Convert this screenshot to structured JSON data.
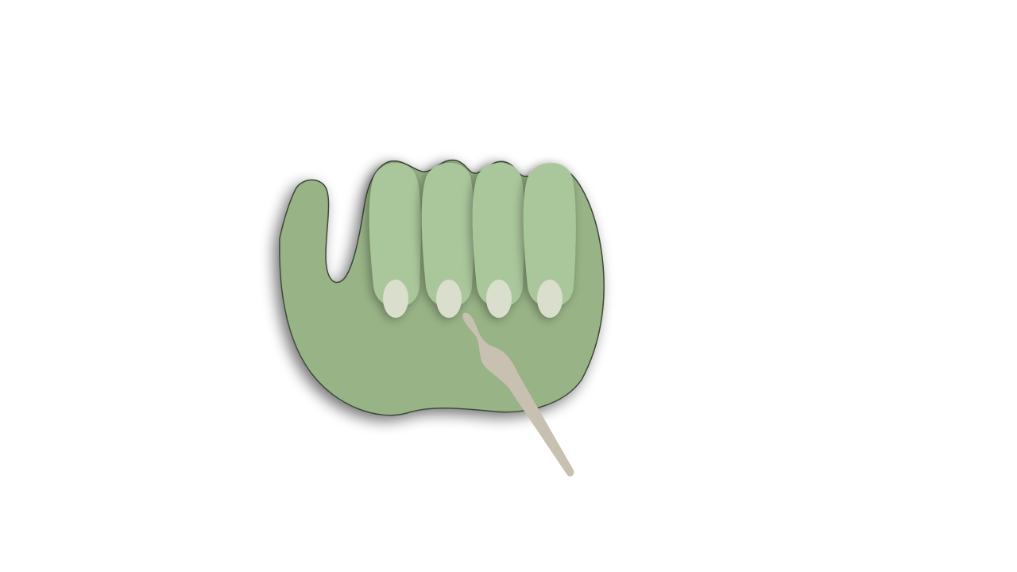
{
  "colors": {
    "background": "#ffffff",
    "palm": "#98b386",
    "palm_outline": "#3d4a38",
    "finger": "#aac79c",
    "fingernail": "#d9dfcc",
    "pusher_tool": "#c8c0b0",
    "shadow": "#000000"
  },
  "scene": {
    "subject": "hand-icon",
    "finger_count": 4,
    "tool": "cuticle-pusher-icon"
  }
}
